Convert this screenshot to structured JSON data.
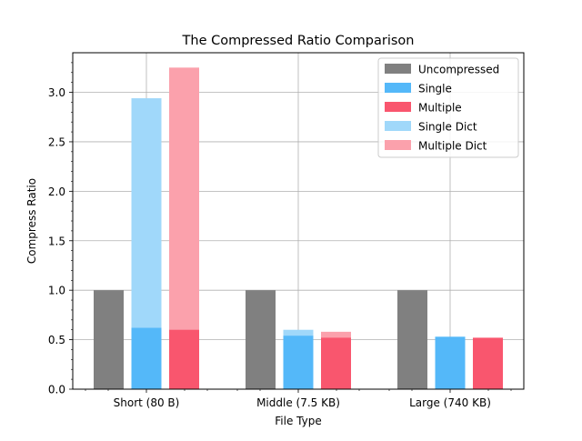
{
  "chart_data": {
    "type": "bar",
    "title": "The Compressed Ratio Comparison",
    "xlabel": "File Type",
    "ylabel": "Compress Ratio",
    "categories": [
      "Short (80 B)",
      "Middle (7.5 KB)",
      "Large (740 KB)"
    ],
    "ylim": [
      0,
      3.4
    ],
    "yticks": [
      0.0,
      0.5,
      1.0,
      1.5,
      2.0,
      2.5,
      3.0
    ],
    "ytick_labels": [
      "0.0",
      "0.5",
      "1.0",
      "1.5",
      "2.0",
      "2.5",
      "3.0"
    ],
    "grid": true,
    "legend_position": "top-right",
    "bar_slots": [
      "Uncompressed",
      "Single",
      "Multiple"
    ],
    "series": [
      {
        "name": "Uncompressed",
        "slot": 0,
        "color": "#808080",
        "values": [
          1.0,
          1.0,
          1.0
        ]
      },
      {
        "name": "Single",
        "slot": 1,
        "color": "#54b8f9",
        "values": [
          0.62,
          0.54,
          0.53
        ]
      },
      {
        "name": "Multiple",
        "slot": 2,
        "color": "#f9566e",
        "values": [
          0.6,
          0.52,
          0.52
        ]
      },
      {
        "name": "Single Dict",
        "slot": 1,
        "color": "#a0d8fa",
        "values": [
          2.94,
          0.6,
          null
        ]
      },
      {
        "name": "Multiple Dict",
        "slot": 2,
        "color": "#fba1ac",
        "values": [
          3.25,
          0.58,
          null
        ]
      }
    ]
  }
}
